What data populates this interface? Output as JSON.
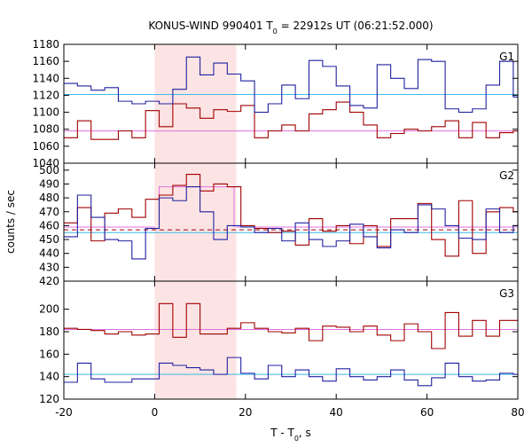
{
  "chart_data": {
    "type": "line",
    "title": "KONUS-WIND 990401 T",
    "title_sub": "0",
    "title_rest": " = 22912s UT (06:21:52.000)",
    "xlabel": "T - T",
    "xlabel_sub": "0",
    "xlabel_rest": ", s",
    "ylabel": "counts / sec",
    "xlim": [
      -20,
      80
    ],
    "x_ticks": [
      -20,
      0,
      20,
      40,
      60,
      80
    ],
    "x_tick_labels": [
      "-20",
      "0",
      "20",
      "40",
      "60",
      "80"
    ],
    "shaded_interval": [
      0,
      18
    ],
    "panels": [
      {
        "name": "G1",
        "ylim": [
          1040,
          1180
        ],
        "y_ticks": [
          1040,
          1060,
          1080,
          1100,
          1120,
          1140,
          1160,
          1180
        ],
        "y_tick_labels": [
          "1040",
          "1060",
          "1080",
          "1100",
          "1120",
          "1140",
          "1160",
          "1180"
        ],
        "background_levels": [
          {
            "value": 1078,
            "color": "#e070e0",
            "style": "solid",
            "range": [
              -20,
              80
            ]
          },
          {
            "value": 1121,
            "color": "#3cb8e8",
            "style": "solid",
            "range": [
              -20,
              80
            ]
          }
        ],
        "series": [
          {
            "color": "#a00000",
            "edges": [
              -20,
              -17,
              -14,
              -11,
              -8,
              -5,
              -2,
              1,
              4,
              7,
              10,
              13,
              16,
              19,
              22,
              25,
              28,
              31,
              34,
              37,
              40,
              43,
              46,
              49,
              52,
              55,
              58,
              61,
              64,
              67,
              70,
              73,
              76,
              79,
              80
            ],
            "values": [
              1070,
              1090,
              1068,
              1068,
              1078,
              1070,
              1102,
              1083,
              1110,
              1105,
              1093,
              1103,
              1101,
              1108,
              1070,
              1078,
              1085,
              1078,
              1098,
              1103,
              1112,
              1100,
              1085,
              1070,
              1075,
              1080,
              1078,
              1083,
              1090,
              1070,
              1088,
              1070,
              1076,
              1078
            ]
          },
          {
            "color": "#2020a0",
            "edges": [
              -20,
              -17,
              -14,
              -11,
              -8,
              -5,
              -2,
              1,
              4,
              7,
              10,
              13,
              16,
              19,
              22,
              25,
              28,
              31,
              34,
              37,
              40,
              43,
              46,
              49,
              52,
              55,
              58,
              61,
              64,
              67,
              70,
              73,
              76,
              79,
              80
            ],
            "values": [
              1134,
              1131,
              1126,
              1129,
              1113,
              1110,
              1113,
              1110,
              1127,
              1165,
              1144,
              1158,
              1145,
              1137,
              1100,
              1110,
              1132,
              1116,
              1161,
              1154,
              1131,
              1108,
              1105,
              1156,
              1140,
              1128,
              1162,
              1160,
              1104,
              1100,
              1104,
              1132,
              1160,
              1118,
              1120
            ]
          }
        ]
      },
      {
        "name": "G2",
        "ylim": [
          420,
          505
        ],
        "y_ticks": [
          420,
          430,
          440,
          450,
          460,
          470,
          480,
          490,
          500
        ],
        "y_tick_labels": [
          "420",
          "430",
          "440",
          "450",
          "460",
          "470",
          "480",
          "490",
          "500"
        ],
        "background_levels": [
          {
            "value": 457,
            "color": "#a00000",
            "style": "dashed",
            "range": [
              -20,
              80
            ]
          },
          {
            "value": 455,
            "color": "#3cb8e8",
            "style": "solid",
            "range": [
              -20,
              80
            ]
          },
          {
            "value": 459,
            "color": "#e070e0",
            "style": "solid",
            "range": [
              -20,
              0
            ]
          },
          {
            "value": 459,
            "color": "#e070e0",
            "style": "solid",
            "range": [
              18,
              80
            ]
          }
        ],
        "signal_box": {
          "x": [
            1,
            17.5
          ],
          "value": 488,
          "color": "#e070e0"
        },
        "series": [
          {
            "color": "#a00000",
            "edges": [
              -20,
              -17,
              -14,
              -11,
              -8,
              -5,
              -2,
              1,
              4,
              7,
              10,
              13,
              16,
              19,
              22,
              25,
              28,
              31,
              34,
              37,
              40,
              43,
              46,
              49,
              52,
              55,
              58,
              61,
              64,
              67,
              70,
              73,
              76,
              79,
              80
            ],
            "values": [
              462,
              473,
              449,
              469,
              472,
              466,
              479,
              482,
              489,
              497,
              485,
              490,
              488,
              460,
              458,
              455,
              456,
              446,
              465,
              456,
              460,
              447,
              460,
              445,
              465,
              465,
              476,
              450,
              438,
              478,
              440,
              470,
              473,
              470
            ]
          },
          {
            "color": "#2020a0",
            "edges": [
              -20,
              -17,
              -14,
              -11,
              -8,
              -5,
              -2,
              1,
              4,
              7,
              10,
              13,
              16,
              19,
              22,
              25,
              28,
              31,
              34,
              37,
              40,
              43,
              46,
              49,
              52,
              55,
              58,
              61,
              64,
              67,
              70,
              73,
              76,
              79,
              80
            ],
            "values": [
              452,
              482,
              466,
              450,
              449,
              436,
              458,
              480,
              478,
              488,
              470,
              450,
              460,
              459,
              455,
              458,
              449,
              462,
              450,
              445,
              449,
              461,
              452,
              444,
              457,
              455,
              475,
              472,
              460,
              451,
              450,
              472,
              455,
              460,
              462
            ]
          }
        ]
      },
      {
        "name": "G3",
        "ylim": [
          120,
          225
        ],
        "y_ticks": [
          120,
          140,
          160,
          180,
          200
        ],
        "y_tick_labels": [
          "120",
          "140",
          "160",
          "180",
          "200"
        ],
        "background_levels": [
          {
            "value": 182,
            "color": "#e070e0",
            "style": "solid",
            "range": [
              -20,
              80
            ]
          },
          {
            "value": 142,
            "color": "#3cb8e8",
            "style": "solid",
            "range": [
              -20,
              80
            ]
          }
        ],
        "series": [
          {
            "color": "#a00000",
            "edges": [
              -20,
              -17,
              -14,
              -11,
              -8,
              -5,
              -2,
              1,
              4,
              7,
              10,
              13,
              16,
              19,
              22,
              25,
              28,
              31,
              34,
              37,
              40,
              43,
              46,
              49,
              52,
              55,
              58,
              61,
              64,
              67,
              70,
              73,
              76,
              79,
              80
            ],
            "values": [
              183,
              182,
              181,
              178,
              180,
              177,
              178,
              205,
              175,
              205,
              178,
              178,
              183,
              188,
              183,
              180,
              179,
              183,
              172,
              185,
              184,
              180,
              185,
              177,
              172,
              187,
              180,
              165,
              197,
              176,
              190,
              176,
              190,
              190,
              189
            ]
          },
          {
            "color": "#2020a0",
            "edges": [
              -20,
              -17,
              -14,
              -11,
              -8,
              -5,
              -2,
              1,
              4,
              7,
              10,
              13,
              16,
              19,
              22,
              25,
              28,
              31,
              34,
              37,
              40,
              43,
              46,
              49,
              52,
              55,
              58,
              61,
              64,
              67,
              70,
              73,
              76,
              79,
              80
            ],
            "values": [
              135,
              152,
              138,
              135,
              135,
              138,
              138,
              152,
              150,
              148,
              146,
              142,
              157,
              143,
              138,
              150,
              140,
              146,
              140,
              136,
              147,
              140,
              137,
              140,
              146,
              137,
              132,
              139,
              152,
              140,
              136,
              137,
              143,
              142,
              141
            ]
          }
        ]
      }
    ]
  }
}
